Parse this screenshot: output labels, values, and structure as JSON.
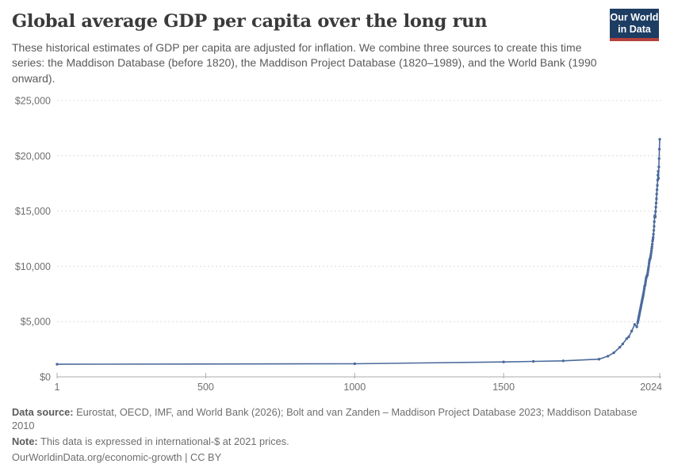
{
  "header": {
    "title": "Global average GDP per capita over the long run",
    "subtitle": "These historical estimates of GDP per capita are adjusted for inflation. We combine three sources to create this time series: the Maddison Database (before 1820), the Maddison Project Database (1820–1989), and the World Bank (1990 onward).",
    "logo": {
      "line1": "Our World",
      "line2": "in Data",
      "bg_color": "#1d3d63",
      "bar_color": "#b5403c"
    }
  },
  "footer": {
    "source_label": "Data source:",
    "source_text": " Eurostat, OECD, IMF, and World Bank (2026); Bolt and van Zanden – Maddison Project Database 2023; Maddison Database 2010",
    "note_label": "Note:",
    "note_text": " This data is expressed in international-$ at 2021 prices.",
    "link_text": "OurWorldinData.org/economic-growth",
    "license_text": " | CC BY"
  },
  "chart_data": {
    "type": "line",
    "title": "Global average GDP per capita over the long run",
    "xlabel": "",
    "ylabel": "",
    "xlim": [
      1,
      2024
    ],
    "ylim": [
      0,
      25000
    ],
    "grid": "horizontal-dashed",
    "legend": "none",
    "xticks": [
      {
        "v": 1,
        "label": "1"
      },
      {
        "v": 500,
        "label": "500"
      },
      {
        "v": 1000,
        "label": "1000"
      },
      {
        "v": 1500,
        "label": "1500"
      },
      {
        "v": 2024,
        "label": "2024"
      }
    ],
    "yticks": [
      {
        "v": 0,
        "label": "$0"
      },
      {
        "v": 5000,
        "label": "$5,000"
      },
      {
        "v": 10000,
        "label": "$10,000"
      },
      {
        "v": 15000,
        "label": "$15,000"
      },
      {
        "v": 20000,
        "label": "$20,000"
      },
      {
        "v": 25000,
        "label": "$25,000"
      }
    ],
    "series": [
      {
        "name": "Global average",
        "color": "#4c6a9c",
        "points": [
          [
            1,
            1140
          ],
          [
            1000,
            1180
          ],
          [
            1500,
            1350
          ],
          [
            1600,
            1400
          ],
          [
            1700,
            1450
          ],
          [
            1820,
            1600
          ],
          [
            1850,
            1870
          ],
          [
            1870,
            2180
          ],
          [
            1890,
            2680
          ],
          [
            1900,
            2980
          ],
          [
            1913,
            3450
          ],
          [
            1920,
            3620
          ],
          [
            1930,
            4150
          ],
          [
            1940,
            4740
          ],
          [
            1947,
            4520
          ],
          [
            1950,
            4900
          ],
          [
            1951,
            5035
          ],
          [
            1952,
            5170
          ],
          [
            1953,
            5305
          ],
          [
            1954,
            5440
          ],
          [
            1955,
            5575
          ],
          [
            1956,
            5710
          ],
          [
            1957,
            5845
          ],
          [
            1958,
            5980
          ],
          [
            1959,
            6115
          ],
          [
            1960,
            6250
          ],
          [
            1961,
            6385
          ],
          [
            1962,
            6520
          ],
          [
            1963,
            6655
          ],
          [
            1964,
            6790
          ],
          [
            1965,
            6925
          ],
          [
            1966,
            7060
          ],
          [
            1967,
            7195
          ],
          [
            1968,
            7330
          ],
          [
            1969,
            7465
          ],
          [
            1970,
            7600
          ],
          [
            1971,
            7780
          ],
          [
            1972,
            7960
          ],
          [
            1973,
            8140
          ],
          [
            1974,
            8250
          ],
          [
            1975,
            8320
          ],
          [
            1976,
            8500
          ],
          [
            1977,
            8680
          ],
          [
            1978,
            8860
          ],
          [
            1979,
            9000
          ],
          [
            1980,
            9080
          ],
          [
            1981,
            9140
          ],
          [
            1982,
            9160
          ],
          [
            1983,
            9280
          ],
          [
            1984,
            9460
          ],
          [
            1985,
            9640
          ],
          [
            1986,
            9820
          ],
          [
            1987,
            10000
          ],
          [
            1988,
            10220
          ],
          [
            1989,
            10420
          ],
          [
            1990,
            10560
          ],
          [
            1991,
            10640
          ],
          [
            1992,
            10720
          ],
          [
            1993,
            10840
          ],
          [
            1994,
            11000
          ],
          [
            1995,
            11180
          ],
          [
            1996,
            11380
          ],
          [
            1997,
            11600
          ],
          [
            1998,
            11780
          ],
          [
            1999,
            12000
          ],
          [
            2000,
            12280
          ],
          [
            2001,
            12440
          ],
          [
            2002,
            12620
          ],
          [
            2003,
            12900
          ],
          [
            2004,
            13260
          ],
          [
            2005,
            13620
          ],
          [
            2006,
            14040
          ],
          [
            2007,
            14460
          ],
          [
            2008,
            14620
          ],
          [
            2009,
            14460
          ],
          [
            2010,
            14960
          ],
          [
            2011,
            15350
          ],
          [
            2012,
            15720
          ],
          [
            2013,
            16110
          ],
          [
            2014,
            16540
          ],
          [
            2015,
            16930
          ],
          [
            2016,
            17330
          ],
          [
            2017,
            17800
          ],
          [
            2018,
            18260
          ],
          [
            2019,
            18600
          ],
          [
            2020,
            17960
          ],
          [
            2021,
            19000
          ],
          [
            2022,
            19750
          ],
          [
            2023,
            20600
          ],
          [
            2024,
            21500
          ]
        ]
      }
    ]
  }
}
